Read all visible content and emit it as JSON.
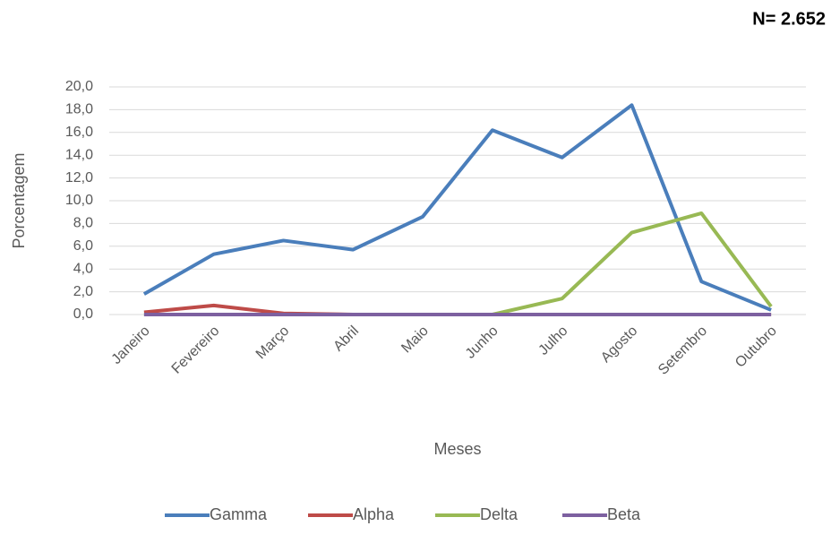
{
  "chart_data": {
    "type": "line",
    "annotation": "N= 2.652",
    "x_label": "Meses",
    "y_label": "Porcentagem",
    "categories": [
      "Janeiro",
      "Fevereiro",
      "Março",
      "Abril",
      "Maio",
      "Junho",
      "Julho",
      "Agosto",
      "Setembro",
      "Outubro"
    ],
    "series": [
      {
        "name": "Gamma",
        "color": "#4a7ebb",
        "values": [
          1.8,
          5.3,
          6.5,
          5.7,
          8.6,
          16.2,
          13.8,
          18.4,
          2.9,
          0.4
        ]
      },
      {
        "name": "Alpha",
        "color": "#be4b48",
        "values": [
          0.2,
          0.8,
          0.1,
          0.0,
          0.0,
          0.0,
          0.0,
          0.0,
          0.0,
          0.0
        ]
      },
      {
        "name": "Delta",
        "color": "#98b954",
        "values": [
          0.0,
          0.0,
          0.0,
          0.0,
          0.0,
          0.0,
          1.4,
          7.2,
          8.9,
          0.7
        ]
      },
      {
        "name": "Beta",
        "color": "#7d60a0",
        "values": [
          0.0,
          0.0,
          0.0,
          0.0,
          0.0,
          0.0,
          0.0,
          0.0,
          0.0,
          0.0
        ]
      }
    ],
    "ylim": [
      0,
      20
    ],
    "yticks": [
      {
        "value": 0,
        "label": "0,0"
      },
      {
        "value": 2,
        "label": "2,0"
      },
      {
        "value": 4,
        "label": "4,0"
      },
      {
        "value": 6,
        "label": "6,0"
      },
      {
        "value": 8,
        "label": "8,0"
      },
      {
        "value": 10,
        "label": "10,0"
      },
      {
        "value": 12,
        "label": "12,0"
      },
      {
        "value": 14,
        "label": "14,0"
      },
      {
        "value": 16,
        "label": "16,0"
      },
      {
        "value": 18,
        "label": "18,0"
      },
      {
        "value": 20,
        "label": "20,0"
      }
    ],
    "grid": true,
    "legend": "bottom"
  }
}
